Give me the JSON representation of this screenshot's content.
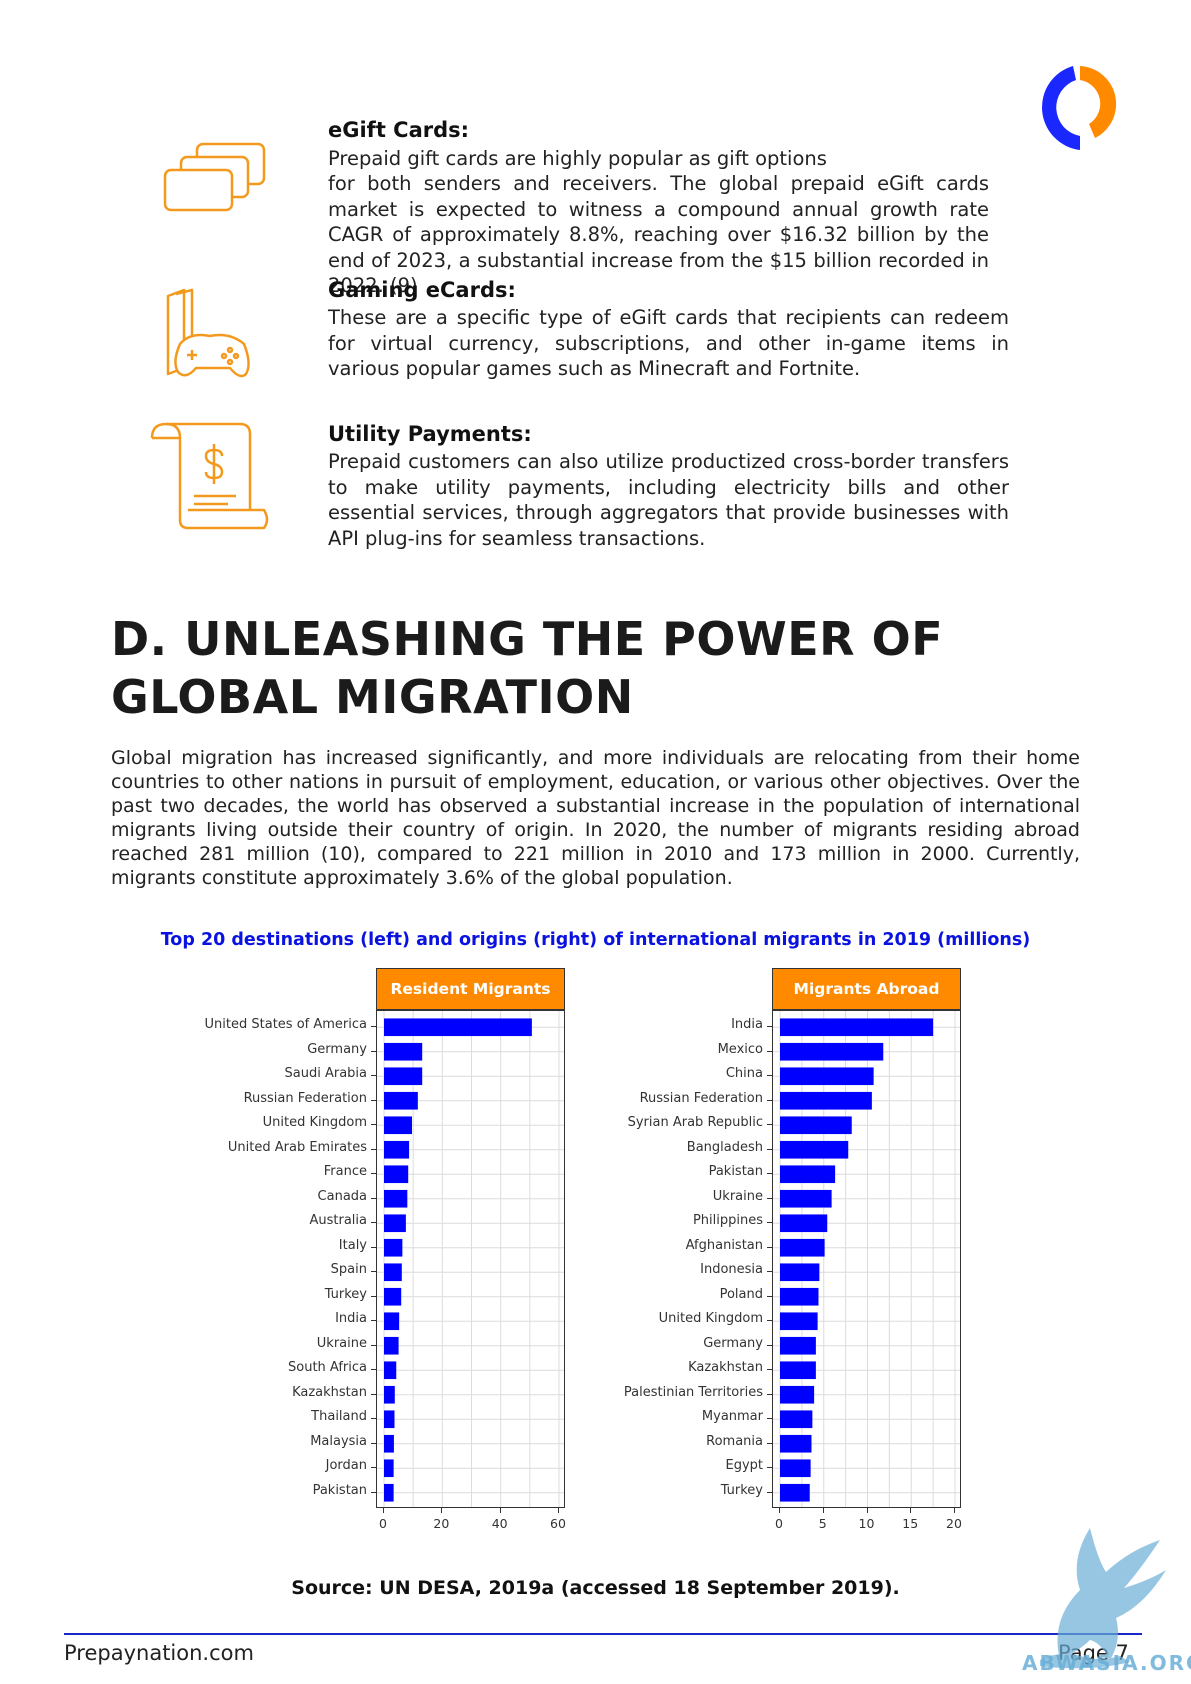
{
  "features": [
    {
      "icon": "gift-cards-icon",
      "title": "eGift Cards:",
      "lines": [
        "Prepaid gift cards are highly popular as gift options",
        "for both senders and receivers. The global prepaid eGift cards market is expected to witness a compound annual growth rate CAGR of approximately 8.8%, reaching over $16.32 billion by the end of 2023, a substantial increase from the $15 billion recorded in 2022. (9)"
      ]
    },
    {
      "icon": "gaming-controller-icon",
      "title": "Gaming eCards:",
      "body": "These are a specific type of eGift cards that recipients can redeem for virtual currency, subscriptions, and other in-game items in various popular games such as Minecraft and Fortnite."
    },
    {
      "icon": "invoice-scroll-icon",
      "title": "Utility Payments:",
      "body": "Prepaid customers can also utilize productized cross-border transfers to make utility payments, including electricity bills and other essential services, through aggregators that provide businesses with API plug-ins for seamless transactions."
    }
  ],
  "section": {
    "heading_line1": "D. UNLEASHING THE POWER OF",
    "heading_line2": "GLOBAL MIGRATION",
    "intro": "Global migration has increased significantly, and more individuals are relocating from their home countries to other nations in pursuit of employment, education, or various other objectives. Over the past two decades, the world has observed a substantial increase in the population of international migrants living outside their country of origin. In 2020, the number of migrants residing abroad reached 281 million (10), compared to 221 million in 2010 and 173 million in 2000. Currently, migrants constitute approximately 3.6% of the global population."
  },
  "chart_title": "Top 20 destinations (left) and origins (right) of international migrants in 2019 (millions)",
  "chart_data": [
    {
      "type": "bar",
      "orientation": "horizontal",
      "panel_title": "Resident Migrants",
      "bar_color": "#0000ff",
      "xlim": [
        0,
        60
      ],
      "xticks": [
        0,
        20,
        40,
        60
      ],
      "grid": true,
      "categories": [
        "United States of America",
        "Germany",
        "Saudi Arabia",
        "Russian Federation",
        "United Kingdom",
        "United Arab Emirates",
        "France",
        "Canada",
        "Australia",
        "Italy",
        "Spain",
        "Turkey",
        "India",
        "Ukraine",
        "South Africa",
        "Kazakhstan",
        "Thailand",
        "Malaysia",
        "Jordan",
        "Pakistan"
      ],
      "values": [
        50.7,
        13.1,
        13.1,
        11.6,
        9.6,
        8.6,
        8.3,
        8.0,
        7.5,
        6.3,
        6.1,
        5.9,
        5.2,
        5.0,
        4.2,
        3.7,
        3.6,
        3.4,
        3.3,
        3.3
      ]
    },
    {
      "type": "bar",
      "orientation": "horizontal",
      "panel_title": "Migrants Abroad",
      "bar_color": "#0000ff",
      "xlim": [
        0,
        20
      ],
      "xticks": [
        0,
        5,
        10,
        15,
        20
      ],
      "grid": true,
      "categories": [
        "India",
        "Mexico",
        "China",
        "Russian Federation",
        "Syrian Arab Republic",
        "Bangladesh",
        "Pakistan",
        "Ukraine",
        "Philippines",
        "Afghanistan",
        "Indonesia",
        "Poland",
        "United Kingdom",
        "Germany",
        "Kazakhstan",
        "Palestinian Territories",
        "Myanmar",
        "Romania",
        "Egypt",
        "Turkey"
      ],
      "values": [
        17.5,
        11.8,
        10.7,
        10.5,
        8.2,
        7.8,
        6.3,
        5.9,
        5.4,
        5.1,
        4.5,
        4.4,
        4.3,
        4.1,
        4.1,
        3.9,
        3.7,
        3.6,
        3.5,
        3.4
      ]
    }
  ],
  "source": "Source: UN DESA, 2019a (accessed 18 September 2019).",
  "footer": {
    "site": "Prepaynation.com",
    "page": "Page 7"
  },
  "watermark_text": "ABWASIA.ORG",
  "colors": {
    "accent_orange": "#f39a1e",
    "accent_blue": "#1a27c8",
    "bar_blue": "#0000ff",
    "panel_orange": "#ff8a00"
  }
}
